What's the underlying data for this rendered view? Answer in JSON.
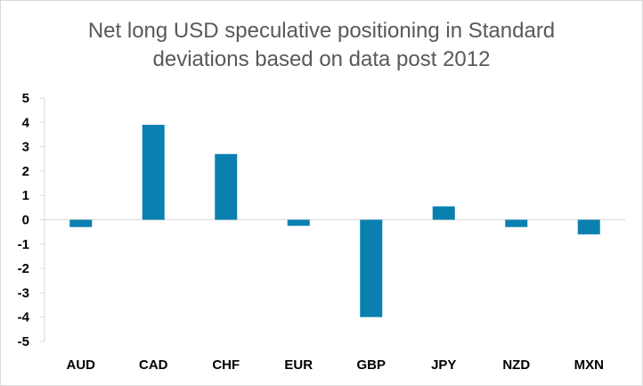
{
  "chart_data": {
    "type": "bar",
    "title_lines": [
      "Net long USD speculative positioning in Standard",
      "deviations based on data post 2012"
    ],
    "categories": [
      "AUD",
      "CAD",
      "CHF",
      "EUR",
      "GBP",
      "JPY",
      "NZD",
      "MXN"
    ],
    "values": [
      -0.3,
      3.9,
      2.7,
      -0.25,
      -4.0,
      0.55,
      -0.3,
      -0.6
    ],
    "yticks": [
      5,
      4,
      3,
      2,
      1,
      0,
      -1,
      -2,
      -3,
      -4,
      -5
    ],
    "ylim": [
      -5,
      5
    ],
    "bar_color": "#0a80b0",
    "axis_color": "#d9d9d9",
    "grid": false,
    "legend": "none"
  }
}
